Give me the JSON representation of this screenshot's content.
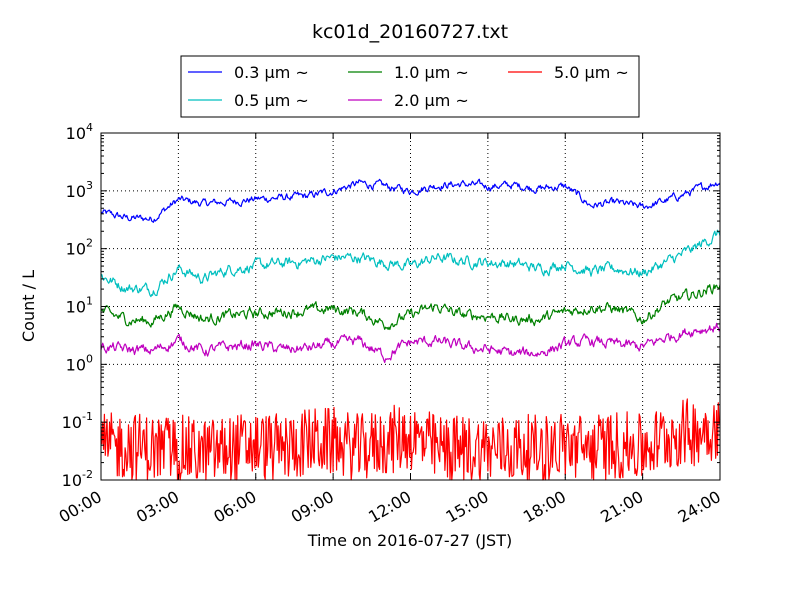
{
  "chart_data": {
    "type": "line",
    "title": "kc01d_20160727.txt",
    "xlabel": "Time on 2016-07-27 (JST)",
    "ylabel": "Count / L",
    "yscale": "log",
    "ylim": [
      0.01,
      10000
    ],
    "xlim": [
      "00:00",
      "24:00"
    ],
    "x_ticks": [
      "00:00",
      "03:00",
      "06:00",
      "09:00",
      "12:00",
      "15:00",
      "18:00",
      "21:00",
      "24:00"
    ],
    "y_ticks": [
      {
        "base": "10",
        "exp": "-2",
        "value": 0.01
      },
      {
        "base": "10",
        "exp": "-1",
        "value": 0.1
      },
      {
        "base": "10",
        "exp": "0",
        "value": 1
      },
      {
        "base": "10",
        "exp": "1",
        "value": 10
      },
      {
        "base": "10",
        "exp": "2",
        "value": 100
      },
      {
        "base": "10",
        "exp": "3",
        "value": 1000
      },
      {
        "base": "10",
        "exp": "4",
        "value": 10000
      }
    ],
    "grid": true,
    "legend_position": "top-center",
    "x": [
      "00:00",
      "01:00",
      "02:00",
      "03:00",
      "04:00",
      "05:00",
      "06:00",
      "07:00",
      "08:00",
      "09:00",
      "10:00",
      "11:00",
      "12:00",
      "13:00",
      "14:00",
      "15:00",
      "16:00",
      "17:00",
      "18:00",
      "19:00",
      "20:00",
      "21:00",
      "22:00",
      "23:00",
      "24:00"
    ],
    "series": [
      {
        "name": "0.3 μm ~",
        "color": "#0000ff",
        "noise": 0.1,
        "values": [
          420,
          340,
          330,
          700,
          600,
          650,
          720,
          760,
          800,
          1000,
          1350,
          1200,
          1000,
          1250,
          1300,
          1200,
          1250,
          1100,
          1200,
          560,
          620,
          520,
          700,
          1000,
          1500
        ]
      },
      {
        "name": "0.5 μm ~",
        "color": "#00bfbf",
        "noise": 0.14,
        "values": [
          34,
          21,
          20,
          45,
          30,
          45,
          50,
          55,
          60,
          70,
          70,
          58,
          50,
          70,
          62,
          58,
          55,
          45,
          55,
          40,
          45,
          38,
          60,
          100,
          190
        ]
      },
      {
        "name": "1.0 μm ~",
        "color": "#008000",
        "noise": 0.14,
        "values": [
          8,
          6,
          5.5,
          10,
          6,
          7,
          7.5,
          8,
          8.5,
          9,
          8,
          5,
          7,
          10,
          7,
          7,
          6,
          6,
          8,
          10,
          9,
          6,
          12,
          16,
          24
        ]
      },
      {
        "name": "2.0 μm ~",
        "color": "#bf00bf",
        "noise": 0.14,
        "values": [
          2,
          1.8,
          1.7,
          2.6,
          1.7,
          2,
          2.2,
          1.8,
          1.9,
          2.2,
          2.5,
          1.4,
          2.4,
          2.5,
          2,
          1.8,
          1.5,
          1.6,
          2.2,
          2.5,
          2.2,
          2,
          3,
          4,
          4.5
        ]
      },
      {
        "name": "5.0 μm ~",
        "color": "#ff0000",
        "noise": 0.5,
        "values": [
          0.03,
          0.035,
          0.03,
          0.03,
          0.025,
          0.03,
          0.035,
          0.03,
          0.04,
          0.04,
          0.03,
          0.04,
          0.05,
          0.03,
          0.03,
          0.03,
          0.03,
          0.03,
          0.035,
          0.03,
          0.035,
          0.03,
          0.05,
          0.06,
          0.08
        ]
      }
    ]
  }
}
